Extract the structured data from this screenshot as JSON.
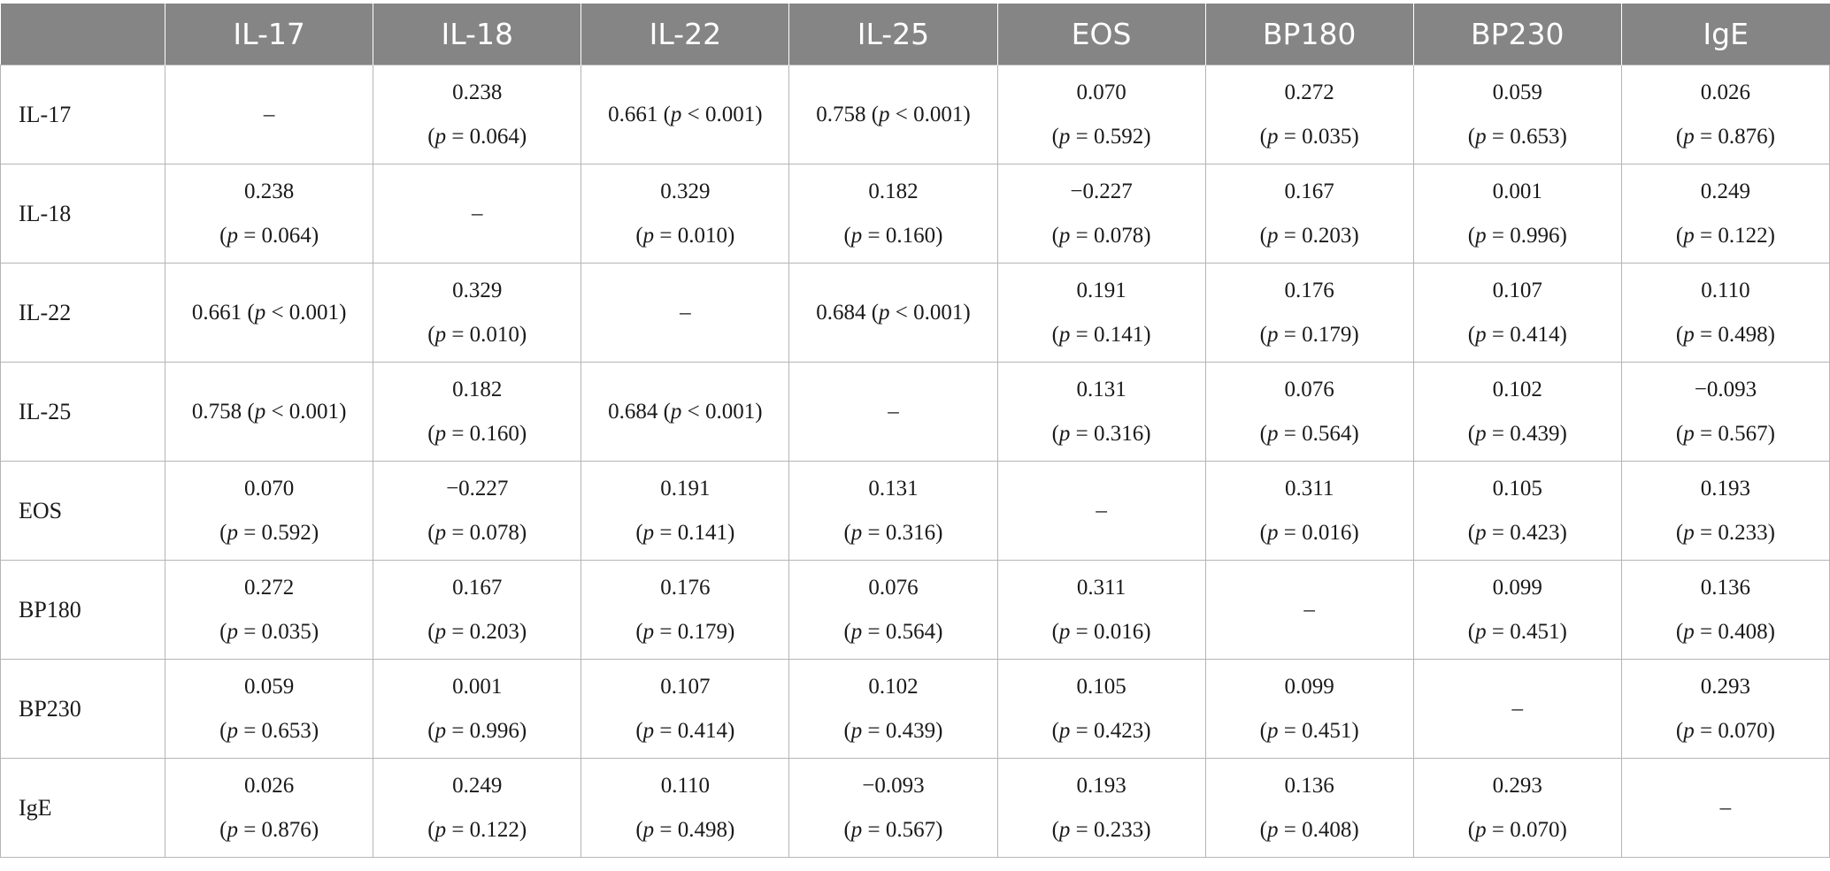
{
  "columns": [
    "",
    "IL-17",
    "IL-18",
    "IL-22",
    "IL-25",
    "EOS",
    "BP180",
    "BP230",
    "IgE"
  ],
  "rows": [
    {
      "label": "IL-17",
      "cells": [
        {
          "dash": "–"
        },
        {
          "r": "0.238",
          "p": "= 0.064"
        },
        {
          "inline": true,
          "r": "0.661",
          "p": "< 0.001"
        },
        {
          "inline": true,
          "r": "0.758",
          "p": "< 0.001"
        },
        {
          "r": "0.070",
          "p": "= 0.592"
        },
        {
          "r": "0.272",
          "p": "= 0.035"
        },
        {
          "r": "0.059",
          "p": "= 0.653"
        },
        {
          "r": "0.026",
          "p": "= 0.876"
        }
      ]
    },
    {
      "label": "IL-18",
      "cells": [
        {
          "r": "0.238",
          "p": "= 0.064"
        },
        {
          "dash": "–"
        },
        {
          "r": "0.329",
          "p": "= 0.010"
        },
        {
          "r": "0.182",
          "p": "= 0.160"
        },
        {
          "r": "−0.227",
          "p": "= 0.078"
        },
        {
          "r": "0.167",
          "p": "= 0.203"
        },
        {
          "r": "0.001",
          "p": "= 0.996"
        },
        {
          "r": "0.249",
          "p": "= 0.122"
        }
      ]
    },
    {
      "label": "IL-22",
      "cells": [
        {
          "inline": true,
          "r": "0.661",
          "p": "< 0.001"
        },
        {
          "r": "0.329",
          "p": "= 0.010"
        },
        {
          "dash": "–"
        },
        {
          "inline": true,
          "r": "0.684",
          "p": "< 0.001"
        },
        {
          "r": "0.191",
          "p": "= 0.141"
        },
        {
          "r": "0.176",
          "p": "= 0.179"
        },
        {
          "r": "0.107",
          "p": "= 0.414"
        },
        {
          "r": "0.110",
          "p": "= 0.498"
        }
      ]
    },
    {
      "label": "IL-25",
      "cells": [
        {
          "inline": true,
          "r": "0.758",
          "p": "< 0.001"
        },
        {
          "r": "0.182",
          "p": "= 0.160"
        },
        {
          "inline": true,
          "r": "0.684",
          "p": "< 0.001"
        },
        {
          "dash": "–"
        },
        {
          "r": "0.131",
          "p": "= 0.316"
        },
        {
          "r": "0.076",
          "p": "= 0.564"
        },
        {
          "r": "0.102",
          "p": "= 0.439"
        },
        {
          "r": "−0.093",
          "p": "= 0.567"
        }
      ]
    },
    {
      "label": "EOS",
      "cells": [
        {
          "r": "0.070",
          "p": "= 0.592"
        },
        {
          "r": "−0.227",
          "p": "= 0.078"
        },
        {
          "r": "0.191",
          "p": "= 0.141"
        },
        {
          "r": "0.131",
          "p": "= 0.316"
        },
        {
          "dash": "–"
        },
        {
          "r": "0.311",
          "p": "= 0.016"
        },
        {
          "r": "0.105",
          "p": "= 0.423"
        },
        {
          "r": "0.193",
          "p": "= 0.233"
        }
      ]
    },
    {
      "label": "BP180",
      "cells": [
        {
          "r": "0.272",
          "p": "= 0.035"
        },
        {
          "r": "0.167",
          "p": "= 0.203"
        },
        {
          "r": "0.176",
          "p": "= 0.179"
        },
        {
          "r": "0.076",
          "p": "= 0.564"
        },
        {
          "r": "0.311",
          "p": "= 0.016"
        },
        {
          "dash": "–"
        },
        {
          "r": "0.099",
          "p": "= 0.451"
        },
        {
          "r": "0.136",
          "p": "= 0.408"
        }
      ]
    },
    {
      "label": "BP230",
      "cells": [
        {
          "r": "0.059",
          "p": "= 0.653"
        },
        {
          "r": "0.001",
          "p": "= 0.996"
        },
        {
          "r": "0.107",
          "p": "= 0.414"
        },
        {
          "r": "0.102",
          "p": "= 0.439"
        },
        {
          "r": "0.105",
          "p": "= 0.423"
        },
        {
          "r": "0.099",
          "p": "= 0.451"
        },
        {
          "dash": "–"
        },
        {
          "r": "0.293",
          "p": "= 0.070"
        }
      ]
    },
    {
      "label": "IgE",
      "cells": [
        {
          "r": "0.026",
          "p": "= 0.876"
        },
        {
          "r": "0.249",
          "p": "= 0.122"
        },
        {
          "r": "0.110",
          "p": "= 0.498"
        },
        {
          "r": "−0.093",
          "p": "= 0.567"
        },
        {
          "r": "0.193",
          "p": "= 0.233"
        },
        {
          "r": "0.136",
          "p": "= 0.408"
        },
        {
          "r": "0.293",
          "p": "= 0.070"
        },
        {
          "dash": "–"
        }
      ]
    }
  ],
  "p_symbol": "p",
  "colors": {
    "header_bg": "#858585",
    "header_text": "#ffffff",
    "border": "#b5b5b5",
    "text": "#1a1a1a"
  }
}
